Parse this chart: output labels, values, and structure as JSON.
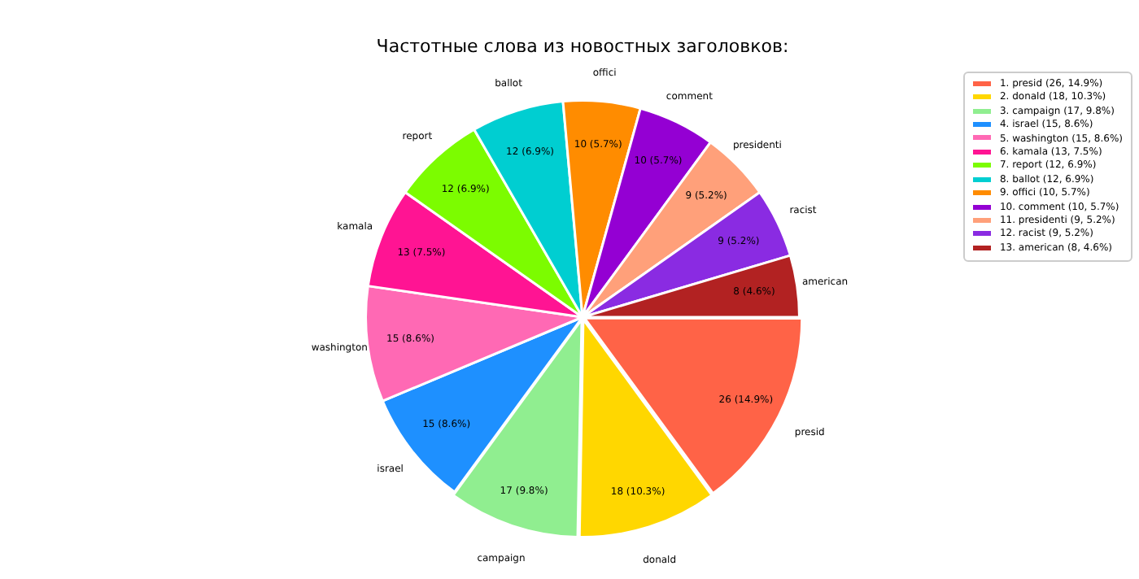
{
  "chart_data": {
    "type": "pie",
    "title": "Частотные слова из новостных заголовков:",
    "categories": [
      "1. presid (26, 14.9%)",
      "2. donald (18, 10.3%)",
      "3. campaign (17, 9.8%)",
      "4. israel (15, 8.6%)",
      "5. washington (15, 8.6%)",
      "6. kamala (13, 7.5%)",
      "7. report (12, 6.9%)",
      "8. ballot (12, 6.9%)",
      "9. offici (10, 5.7%)",
      "10. comment (10, 5.7%)",
      "11. presidenti (9, 5.2%)",
      "12. racist (9, 5.2%)",
      "13. american (8, 4.6%)"
    ],
    "values": [
      26,
      18,
      17,
      15,
      15,
      13,
      12,
      12,
      10,
      10,
      9,
      9,
      8
    ],
    "value_labels": [
      "26 (14.9%)",
      "18 (10.3%)",
      "17 (9.8%)",
      "15 (8.6%)",
      "15 (8.6%)",
      "13 (7.5%)",
      "12 (6.9%)",
      "12 (6.9%)",
      "10 (5.7%)",
      "10 (5.7%)",
      "9 (5.2%)",
      "9 (5.2%)",
      "8 (4.6%)"
    ],
    "annotations": [
      "presid",
      "donald",
      "campaign",
      "israel",
      "washington",
      "kamala",
      "report",
      "ballot",
      "offici",
      "comment",
      "presidenti",
      "racist",
      "american"
    ],
    "colors": [
      "#ff6347",
      "#ffd700",
      "#90ee90",
      "#1e90ff",
      "#ff69b4",
      "#ff1493",
      "#7cfc00",
      "#00ced1",
      "#ff8c00",
      "#9400d3",
      "#ffa07a",
      "#8a2be2",
      "#b22222"
    ],
    "legend": "top right"
  }
}
